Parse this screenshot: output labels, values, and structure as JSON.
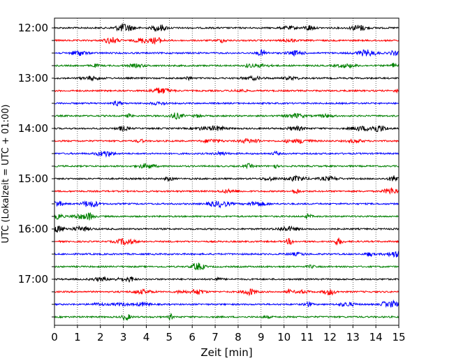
{
  "chart_data": {
    "type": "line",
    "title": "",
    "xlabel": "Zeit  [min]",
    "ylabel": "UTC (Lokalzeit = UTC + 01:00)",
    "xlim": [
      0,
      15
    ],
    "x_ticks": [
      0,
      1,
      2,
      3,
      4,
      5,
      6,
      7,
      8,
      9,
      10,
      11,
      12,
      13,
      14,
      15
    ],
    "y_tick_labels": [
      "12:00",
      "13:00",
      "14:00",
      "15:00",
      "16:00",
      "17:00"
    ],
    "grid": "vertical dotted",
    "trace_interval_minutes": 15,
    "series_colors": [
      "#000000",
      "#ff0000",
      "#0000ff",
      "#008000"
    ],
    "traces": [
      {
        "start": "12:00",
        "color": "#000000"
      },
      {
        "start": "12:15",
        "color": "#ff0000"
      },
      {
        "start": "12:30",
        "color": "#0000ff"
      },
      {
        "start": "12:45",
        "color": "#008000"
      },
      {
        "start": "13:00",
        "color": "#000000"
      },
      {
        "start": "13:15",
        "color": "#ff0000"
      },
      {
        "start": "13:30",
        "color": "#0000ff"
      },
      {
        "start": "13:45",
        "color": "#008000"
      },
      {
        "start": "14:00",
        "color": "#000000"
      },
      {
        "start": "14:15",
        "color": "#ff0000"
      },
      {
        "start": "14:30",
        "color": "#0000ff"
      },
      {
        "start": "14:45",
        "color": "#008000"
      },
      {
        "start": "15:00",
        "color": "#000000"
      },
      {
        "start": "15:15",
        "color": "#ff0000"
      },
      {
        "start": "15:30",
        "color": "#0000ff"
      },
      {
        "start": "15:45",
        "color": "#008000"
      },
      {
        "start": "16:00",
        "color": "#000000"
      },
      {
        "start": "16:15",
        "color": "#ff0000"
      },
      {
        "start": "16:30",
        "color": "#0000ff"
      },
      {
        "start": "16:45",
        "color": "#008000"
      },
      {
        "start": "17:00",
        "color": "#000000"
      },
      {
        "start": "17:15",
        "color": "#ff0000"
      },
      {
        "start": "17:30",
        "color": "#0000ff"
      },
      {
        "start": "17:45",
        "color": "#008000"
      }
    ]
  }
}
